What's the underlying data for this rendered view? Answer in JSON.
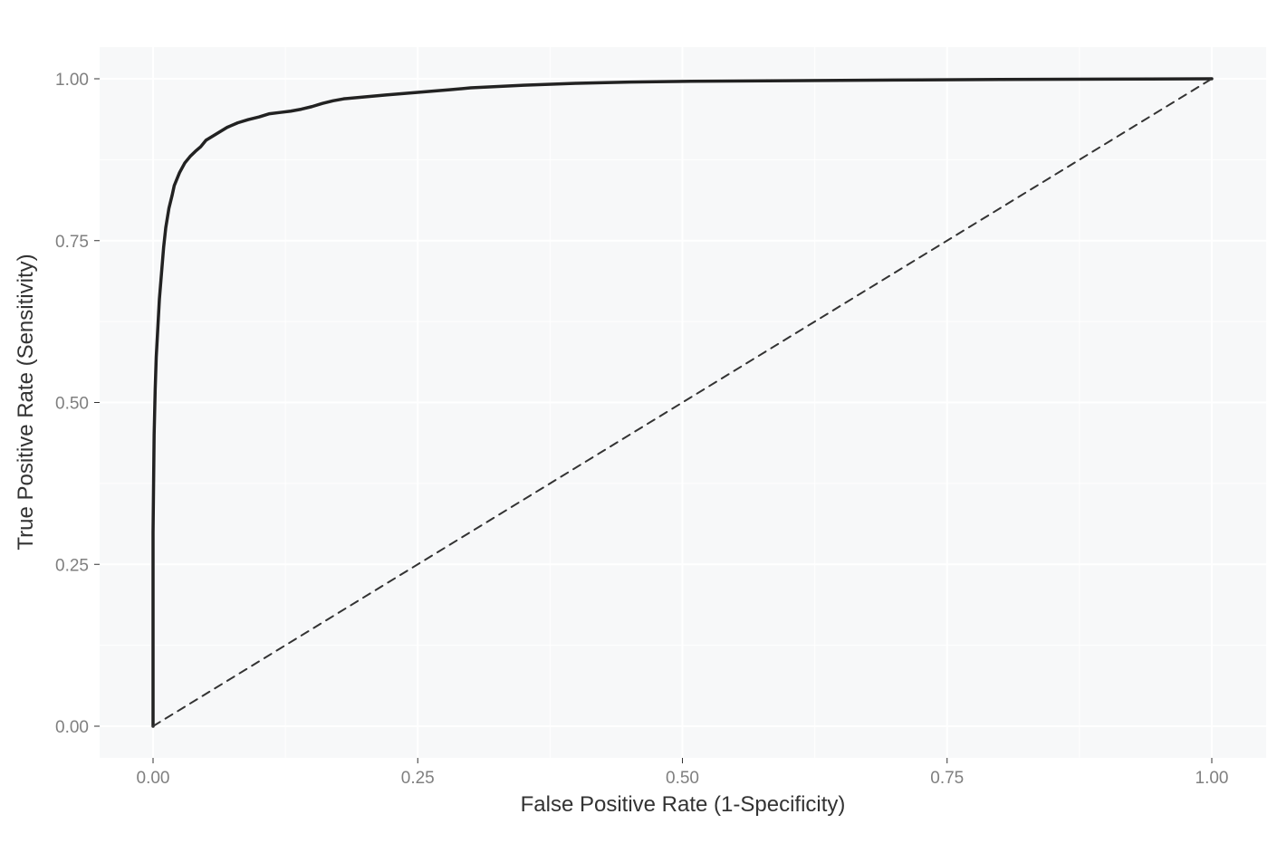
{
  "chart_data": {
    "type": "line",
    "title": "",
    "xlabel": "False Positive Rate (1-Specificity)",
    "ylabel": "True Positive Rate (Sensitivity)",
    "xlim": [
      0,
      1
    ],
    "ylim": [
      0,
      1
    ],
    "x_ticks": [
      "0.00",
      "0.25",
      "0.50",
      "0.75",
      "1.00"
    ],
    "y_ticks": [
      "0.00",
      "0.25",
      "0.50",
      "0.75",
      "1.00"
    ],
    "grid": true,
    "legend": "none",
    "colors": {
      "panel_background": "#f7f8f9",
      "grid_line": "#ffffff",
      "roc_curve": "#222222",
      "reference_line": "#333333"
    },
    "series": [
      {
        "style": "solid",
        "x": [
          0,
          0,
          0.001,
          0.002,
          0.003,
          0.004,
          0.005,
          0.006,
          0.008,
          0.01,
          0.012,
          0.015,
          0.018,
          0.02,
          0.025,
          0.03,
          0.035,
          0.04,
          0.045,
          0.05,
          0.06,
          0.07,
          0.08,
          0.09,
          0.1,
          0.11,
          0.12,
          0.13,
          0.14,
          0.15,
          0.16,
          0.17,
          0.18,
          0.2,
          0.22,
          0.25,
          0.28,
          0.3,
          0.35,
          0.4,
          0.45,
          0.5,
          0.6,
          0.7,
          0.8,
          0.9,
          1.0
        ],
        "y": [
          0,
          0.3,
          0.45,
          0.52,
          0.57,
          0.6,
          0.63,
          0.66,
          0.7,
          0.74,
          0.77,
          0.8,
          0.82,
          0.835,
          0.855,
          0.87,
          0.88,
          0.888,
          0.895,
          0.905,
          0.915,
          0.925,
          0.932,
          0.937,
          0.941,
          0.946,
          0.948,
          0.95,
          0.953,
          0.957,
          0.962,
          0.966,
          0.969,
          0.972,
          0.975,
          0.979,
          0.983,
          0.986,
          0.99,
          0.993,
          0.995,
          0.996,
          0.997,
          0.998,
          0.999,
          0.9995,
          1.0
        ]
      },
      {
        "style": "dashed",
        "x": [
          0,
          1
        ],
        "y": [
          0,
          1
        ]
      }
    ]
  }
}
